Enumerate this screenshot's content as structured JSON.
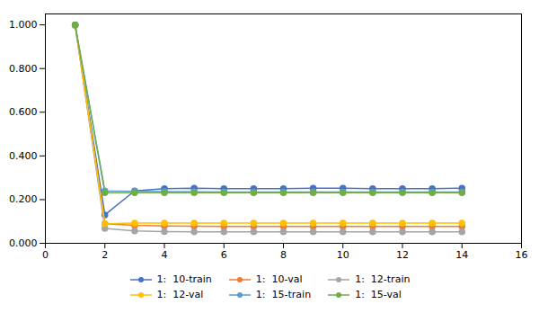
{
  "chart_data": {
    "type": "line",
    "x": [
      1,
      2,
      3,
      4,
      5,
      6,
      7,
      8,
      9,
      10,
      11,
      12,
      13,
      14
    ],
    "series": [
      {
        "name": "1:  10-train",
        "color": "#4472C4",
        "values": [
          1.0,
          0.13,
          0.24,
          0.25,
          0.252,
          0.25,
          0.25,
          0.25,
          0.252,
          0.252,
          0.25,
          0.25,
          0.25,
          0.252
        ]
      },
      {
        "name": "1:  10-val",
        "color": "#ED7D31",
        "values": [
          1.0,
          0.09,
          0.082,
          0.079,
          0.078,
          0.077,
          0.077,
          0.077,
          0.077,
          0.077,
          0.077,
          0.077,
          0.077,
          0.077
        ]
      },
      {
        "name": "1:  12-train",
        "color": "#A5A5A5",
        "values": [
          1.0,
          0.068,
          0.057,
          0.054,
          0.053,
          0.053,
          0.053,
          0.053,
          0.053,
          0.053,
          0.053,
          0.053,
          0.053,
          0.053
        ]
      },
      {
        "name": "1:  12-val",
        "color": "#FFC000",
        "values": [
          1.0,
          0.09,
          0.093,
          0.093,
          0.093,
          0.093,
          0.093,
          0.093,
          0.093,
          0.093,
          0.093,
          0.093,
          0.093,
          0.093
        ]
      },
      {
        "name": "1:  15-train",
        "color": "#5B9BD5",
        "values": [
          1.0,
          0.24,
          0.238,
          0.237,
          0.236,
          0.235,
          0.235,
          0.235,
          0.235,
          0.235,
          0.235,
          0.235,
          0.235,
          0.235
        ]
      },
      {
        "name": "1:  15-val",
        "color": "#70AD47",
        "values": [
          1.0,
          0.232,
          0.232,
          0.232,
          0.232,
          0.232,
          0.232,
          0.232,
          0.232,
          0.232,
          0.232,
          0.232,
          0.232,
          0.232
        ]
      }
    ],
    "xlim": [
      0,
      16
    ],
    "xticks": [
      0,
      2,
      4,
      6,
      8,
      10,
      12,
      14,
      16
    ],
    "ylim": [
      0.0,
      1.05
    ],
    "yticks": [
      {
        "value": 0.0,
        "label": "0.000"
      },
      {
        "value": 0.2,
        "label": "0.200"
      },
      {
        "value": 0.4,
        "label": "0.400"
      },
      {
        "value": 0.6,
        "label": "0.600"
      },
      {
        "value": 0.8,
        "label": "0.800"
      },
      {
        "value": 1.0,
        "label": "1.000"
      }
    ],
    "marker": "circle",
    "legend": "bottom"
  }
}
